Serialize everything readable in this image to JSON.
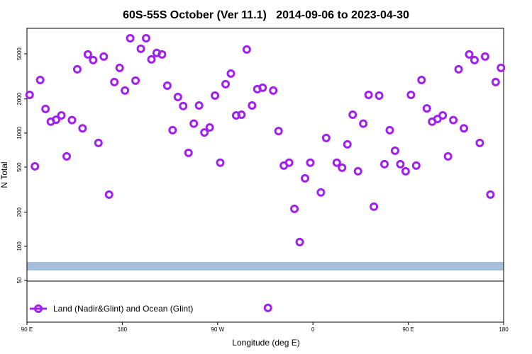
{
  "chart_data": {
    "type": "scatter",
    "title": "60S-55S October (Ver 11.1)   2014-09-06 to 2023-04-30",
    "xlabel": "Longitude (deg E)",
    "ylabel": "N Total",
    "xlim": [
      90,
      540
    ],
    "xticks": [
      {
        "value": 90,
        "label": "90 E"
      },
      180,
      {
        "value": 270,
        "label": "90 W"
      },
      {
        "value": 360,
        "label": "0"
      },
      {
        "value": 450,
        "label": "90 E"
      },
      {
        "value": 540,
        "label": "180"
      }
    ],
    "ylim": [
      21.4,
      8400
    ],
    "log_y": true,
    "yticks": [
      50,
      100,
      200,
      500,
      1000,
      2000,
      5000
    ],
    "legend": "bottom-left",
    "series": [
      {
        "name": "Land (Nadir&Glint) and Ocean (Glint)",
        "color": "#a020f0",
        "x": [
          92.5,
          97.5,
          102.5,
          107.5,
          112.5,
          117.5,
          122.5,
          127.5,
          132.5,
          137.5,
          142.5,
          147.5,
          152.5,
          157.5,
          162.5,
          167.5,
          172.5,
          177.5,
          182.5,
          187.5,
          192.5,
          197.5,
          202.5,
          207.5,
          212.5,
          217.5,
          222.5,
          227.5,
          232.5,
          237.5,
          242.5,
          247.5,
          252.5,
          257.5,
          262.5,
          267.5,
          272.5,
          277.5,
          282.5,
          287.5,
          292.5,
          297.5,
          302.5,
          307.5,
          312.5,
          317.5,
          322.5,
          327.5,
          332.5,
          337.5,
          342.5,
          347.5,
          352.5,
          357.5,
          367.5,
          372.5,
          382.5,
          387.5,
          392.5,
          397.5,
          402.5,
          407.5,
          412.5,
          417.5,
          422.5,
          427.5,
          432.5,
          437.5,
          442.5,
          447.5,
          452.5,
          457.5,
          462.5,
          467.5,
          472.5,
          477.5,
          482.5,
          487.5,
          492.5,
          497.5,
          502.5,
          507.5,
          512.5,
          517.5,
          522.5,
          527.5,
          532.5,
          537.5
        ],
        "values": [
          2170,
          508,
          2940,
          1630,
          1260,
          1310,
          1430,
          622,
          1300,
          3650,
          1100,
          4940,
          4400,
          818,
          4730,
          286,
          2820,
          3760,
          2370,
          6870,
          2900,
          5540,
          6870,
          4470,
          5090,
          4940,
          2620,
          1060,
          2080,
          1730,
          668,
          1210,
          1750,
          1010,
          1120,
          2140,
          547,
          2700,
          3350,
          1430,
          1450,
          5460,
          1750,
          2440,
          2510,
          28.6,
          2370,
          1040,
          516,
          547,
          214,
          109,
          398,
          547,
          299,
          904,
          547,
          494,
          794,
          1450,
          460,
          1210,
          2170,
          224,
          2140,
          531,
          1060,
          698,
          531,
          460,
          2170,
          516,
          2940,
          1650,
          1260,
          1330,
          1430,
          622,
          1300,
          3650,
          1100,
          4940,
          4400,
          818,
          4730,
          286,
          2820,
          3760
        ]
      }
    ]
  }
}
